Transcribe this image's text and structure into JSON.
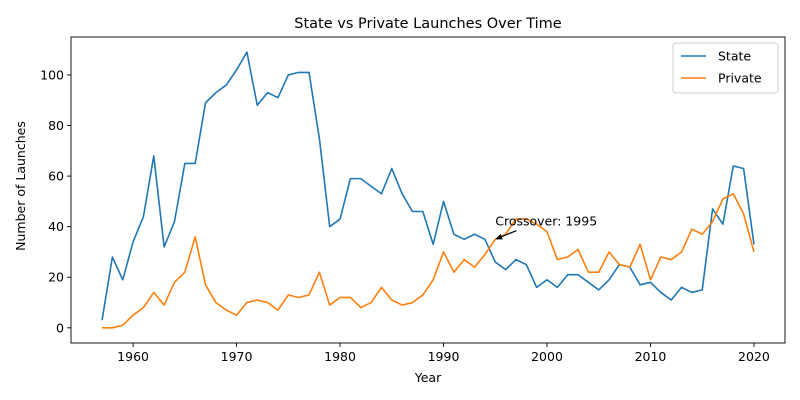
{
  "chart_data": {
    "type": "line",
    "title": "State vs Private Launches Over Time",
    "xlabel": "Year",
    "ylabel": "Number of Launches",
    "xlim": [
      1954,
      2023
    ],
    "ylim": [
      -6,
      115
    ],
    "xticks": [
      1960,
      1970,
      1980,
      1990,
      2000,
      2010,
      2020
    ],
    "yticks": [
      0,
      20,
      40,
      60,
      80,
      100
    ],
    "xtick_labels": [
      "1960",
      "1970",
      "1980",
      "1990",
      "2000",
      "2010",
      "2020"
    ],
    "ytick_labels": [
      "0",
      "20",
      "40",
      "60",
      "80",
      "100"
    ],
    "grid": false,
    "legend": "top-right",
    "x": [
      1957,
      1958,
      1959,
      1960,
      1961,
      1962,
      1963,
      1964,
      1965,
      1966,
      1967,
      1968,
      1969,
      1970,
      1971,
      1972,
      1973,
      1974,
      1975,
      1976,
      1977,
      1978,
      1979,
      1980,
      1981,
      1982,
      1983,
      1984,
      1985,
      1986,
      1987,
      1988,
      1989,
      1990,
      1991,
      1992,
      1993,
      1994,
      1995,
      1996,
      1997,
      1998,
      1999,
      2000,
      2001,
      2002,
      2003,
      2004,
      2005,
      2006,
      2007,
      2008,
      2009,
      2010,
      2011,
      2012,
      2013,
      2014,
      2015,
      2016,
      2017,
      2018,
      2019,
      2020
    ],
    "series": [
      {
        "name": "State",
        "color": "#1f77b4",
        "values": [
          3,
          28,
          19,
          34,
          44,
          68,
          32,
          42,
          65,
          65,
          89,
          93,
          96,
          102,
          109,
          88,
          93,
          91,
          100,
          101,
          101,
          75,
          40,
          43,
          59,
          59,
          56,
          53,
          63,
          53,
          46,
          46,
          33,
          50,
          37,
          35,
          37,
          35,
          26,
          23,
          27,
          25,
          16,
          19,
          16,
          21,
          21,
          18,
          15,
          19,
          25,
          24,
          17,
          18,
          14,
          11,
          16,
          14,
          15,
          47,
          41,
          64,
          63,
          33
        ]
      },
      {
        "name": "Private",
        "color": "#ff7f0e",
        "values": [
          0,
          0,
          1,
          5,
          8,
          14,
          9,
          18,
          22,
          36,
          17,
          10,
          7,
          5,
          10,
          11,
          10,
          7,
          13,
          12,
          13,
          22,
          9,
          12,
          12,
          8,
          10,
          16,
          11,
          9,
          10,
          13,
          19,
          30,
          22,
          27,
          24,
          29,
          35,
          37,
          43,
          43,
          41,
          38,
          27,
          28,
          31,
          22,
          22,
          30,
          25,
          24,
          33,
          19,
          28,
          27,
          30,
          39,
          37,
          42,
          51,
          53,
          45,
          30
        ]
      }
    ],
    "annotation": {
      "text": "Crossover: 1995",
      "arrow_to": [
        1995,
        35
      ],
      "text_at": [
        1995,
        40
      ]
    }
  }
}
